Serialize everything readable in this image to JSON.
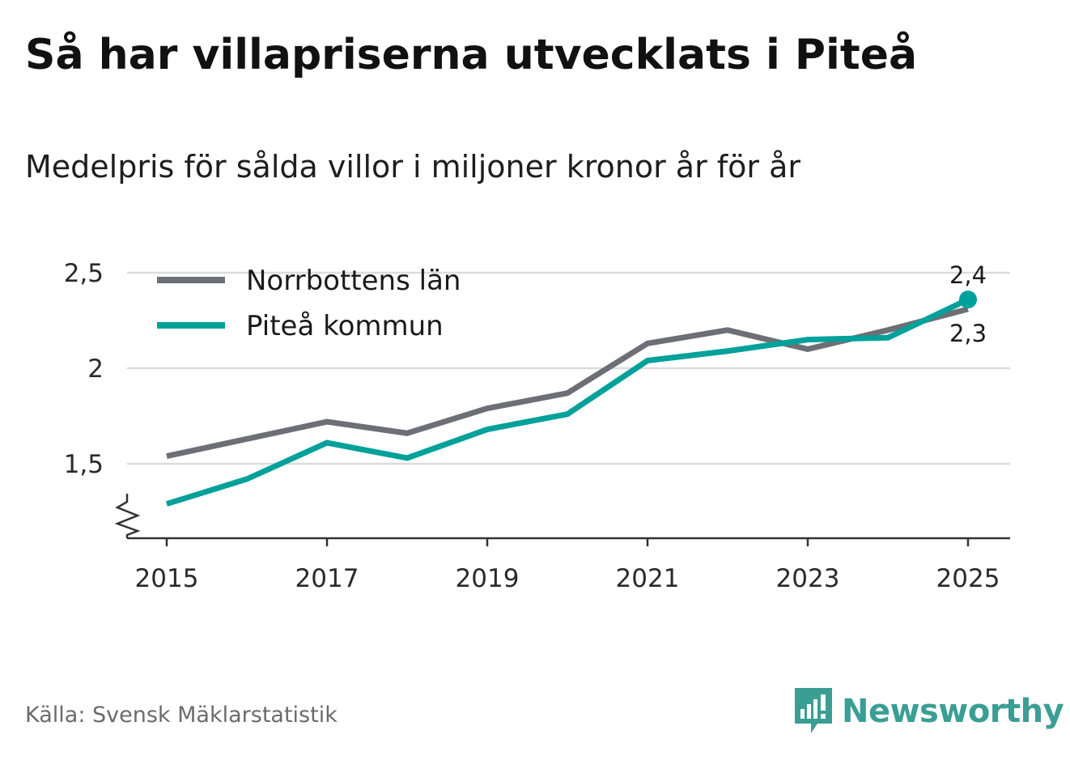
{
  "header": {
    "title": "Så har villapriserna utvecklats i Piteå",
    "subtitle": "Medelpris för sålda villor i miljoner kronor år för år"
  },
  "footer": {
    "source": "Källa: Svensk Mäklarstatistik",
    "brand": "Newsworthy"
  },
  "colors": {
    "norrbotten": "#6e6e76",
    "pitea": "#00a19a",
    "grid": "#dcdcdc",
    "axis": "#333333",
    "brand": "#3a9e94"
  },
  "chart_data": {
    "type": "line",
    "title": "Så har villapriserna utvecklats i Piteå",
    "subtitle": "Medelpris för sålda villor i miljoner kronor år för år",
    "xlabel": "",
    "ylabel": "",
    "x": [
      2015,
      2016,
      2017,
      2018,
      2019,
      2020,
      2021,
      2022,
      2023,
      2024,
      2025
    ],
    "xticks": [
      "2015",
      "2017",
      "2019",
      "2021",
      "2023",
      "2025"
    ],
    "yticks": [
      {
        "value": 1.5,
        "label": "1,5"
      },
      {
        "value": 2.0,
        "label": "2"
      },
      {
        "value": 2.5,
        "label": "2,5"
      }
    ],
    "ylim": [
      1.12,
      2.6
    ],
    "axis_break": true,
    "grid": true,
    "legend_position": "top-left",
    "series": [
      {
        "key": "norrbotten",
        "name": "Norrbottens län",
        "values": [
          1.54,
          1.63,
          1.72,
          1.66,
          1.79,
          1.87,
          2.13,
          2.2,
          2.1,
          2.2,
          2.31
        ],
        "end_label": "2,3"
      },
      {
        "key": "pitea",
        "name": "Piteå kommun",
        "values": [
          1.29,
          1.42,
          1.61,
          1.53,
          1.68,
          1.76,
          2.04,
          2.09,
          2.15,
          2.16,
          2.36
        ],
        "end_label": "2,4"
      }
    ]
  }
}
